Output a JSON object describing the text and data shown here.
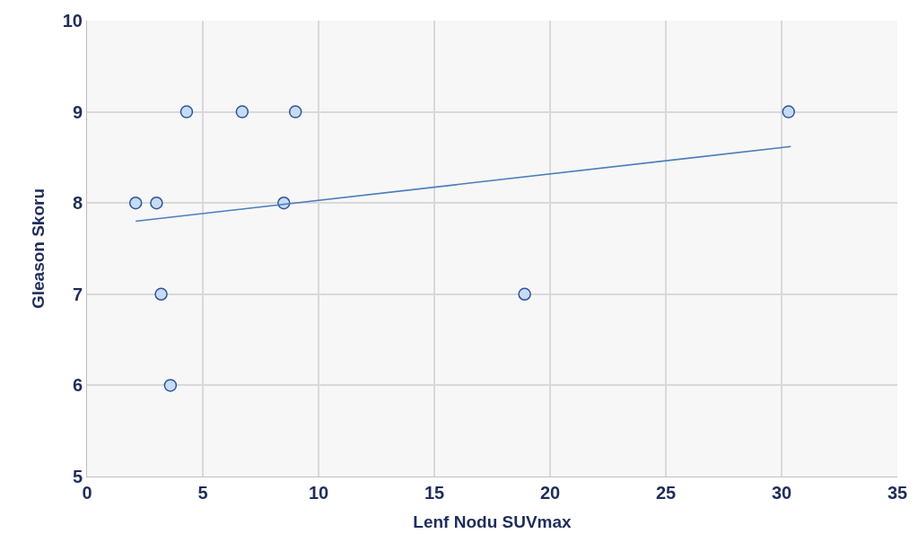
{
  "chart_data": {
    "type": "scatter",
    "xlabel": "Lenf Nodu SUVmax",
    "ylabel": "Gleason Skoru",
    "series": [
      {
        "color": "#c6dbf5",
        "x": [
          2.1,
          3.0,
          3.2,
          3.6,
          4.3,
          6.7,
          8.5,
          9.0,
          18.9,
          30.3
        ],
        "values": [
          8,
          8,
          7,
          6,
          9,
          9,
          8,
          9,
          7,
          9
        ],
        "marker": "circle"
      },
      {
        "type": "line",
        "color": "#4a7ebb",
        "x": [
          2.1,
          30.4
        ],
        "values": [
          7.8,
          8.62
        ],
        "marker": "none"
      }
    ],
    "xlim": [
      0,
      35
    ],
    "xticks": [
      0,
      5,
      10,
      15,
      20,
      25,
      30,
      35
    ],
    "ylim": [
      5,
      10
    ],
    "yticks": [
      5,
      6,
      7,
      8,
      9,
      10
    ],
    "grid": true
  }
}
